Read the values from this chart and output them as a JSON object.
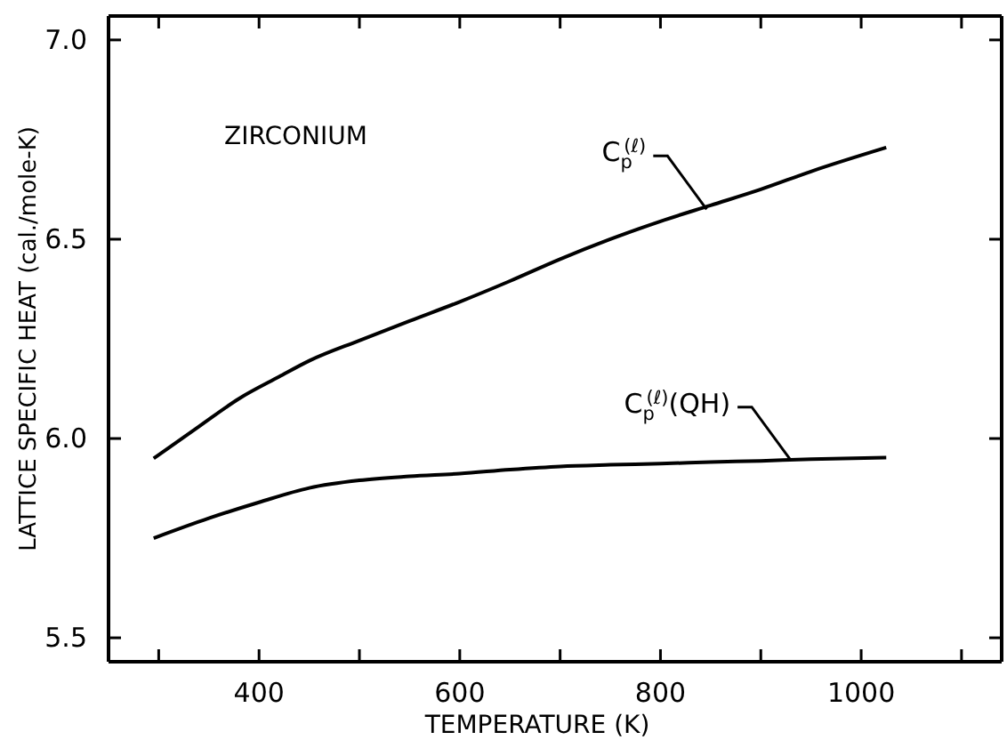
{
  "chart_data": {
    "type": "line",
    "xlabel": "TEMPERATURE (K)",
    "ylabel": "LATTICE SPECIFIC HEAT (cal./mole-K)",
    "xlim": [
      250,
      1140
    ],
    "ylim": [
      5.44,
      7.06
    ],
    "xticks": [
      {
        "value": 300,
        "label": null
      },
      400,
      {
        "value": 500,
        "label": null
      },
      600,
      {
        "value": 700,
        "label": null
      },
      800,
      {
        "value": 900,
        "label": null
      },
      1000,
      {
        "value": 1100,
        "label": null
      }
    ],
    "yticks": [
      5.5,
      {
        "value": 6,
        "label": "6.0"
      },
      6.5,
      {
        "value": 7,
        "label": "7.0"
      }
    ],
    "grid": false,
    "legend": false,
    "marker": "none",
    "line_style": "solid",
    "series": [
      {
        "color": "#000000",
        "x": [
          295,
          340,
          380,
          420,
          450,
          500,
          550,
          600,
          650,
          700,
          750,
          800,
          850,
          900,
          950,
          1025
        ],
        "values": [
          5.95,
          6.03,
          6.1,
          6.155,
          6.195,
          6.246,
          6.295,
          6.343,
          6.395,
          6.45,
          6.5,
          6.545,
          6.585,
          6.625,
          6.67,
          6.73
        ]
      },
      {
        "color": "#000000",
        "x": [
          295,
          350,
          400,
          450,
          500,
          550,
          600,
          650,
          700,
          750,
          800,
          850,
          900,
          950,
          1025
        ],
        "values": [
          5.75,
          5.8,
          5.84,
          5.876,
          5.895,
          5.905,
          5.912,
          5.922,
          5.93,
          5.934,
          5.937,
          5.941,
          5.944,
          5.948,
          5.952
        ]
      }
    ],
    "annotations": [
      "ZIRCONIUM",
      {
        "text": "C$_{p}$$^{(ℓ)}$",
        "x": 846,
        "y": 6.575
      },
      {
        "text": "C$_{p}$$^{(ℓ)}$(QH)",
        "x": 930,
        "y": 5.945
      }
    ]
  }
}
